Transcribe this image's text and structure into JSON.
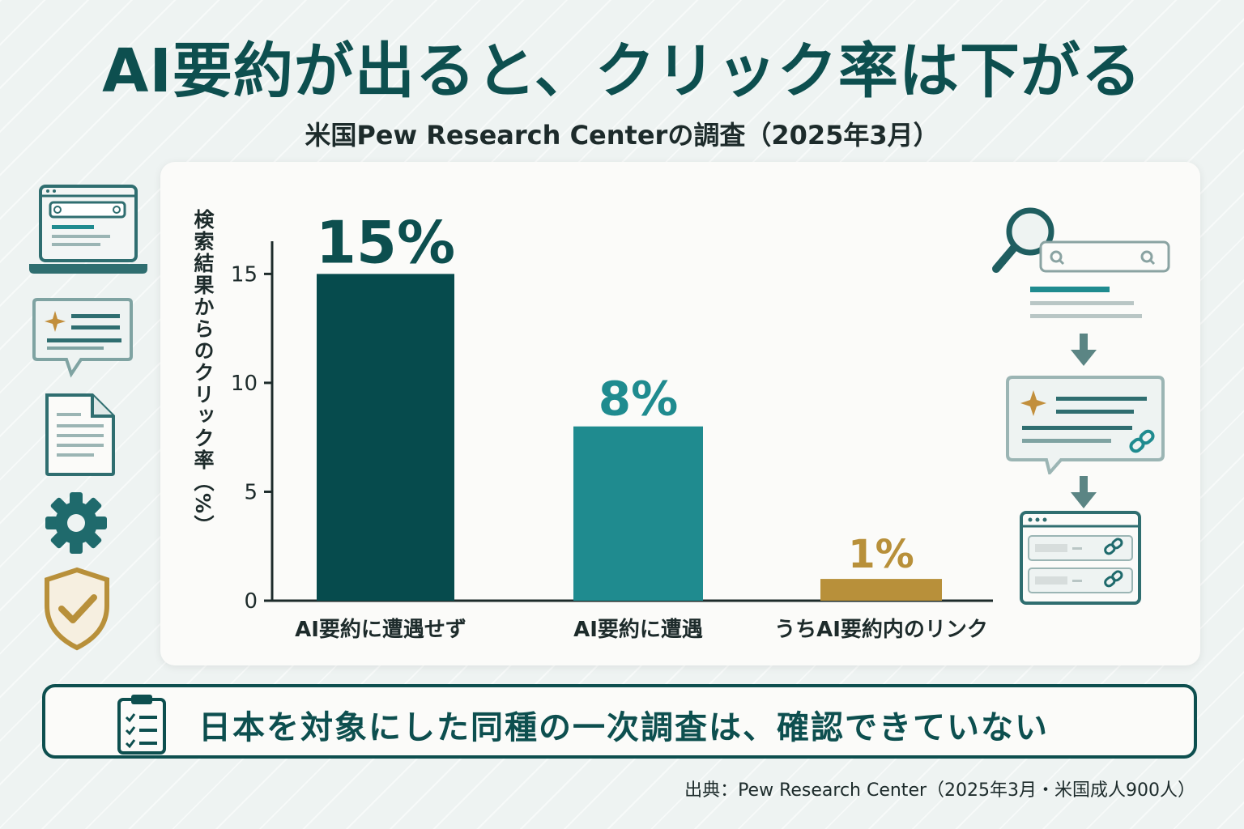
{
  "header": {
    "title": "AI要約が出ると、クリック率は下がる",
    "subtitle": "米国Pew Research Centerの調査（2025年3月）"
  },
  "chart_data": {
    "type": "bar",
    "categories": [
      "AI要約に遭遇せず",
      "AI要約に遭遇",
      "うちAI要約内のリンク"
    ],
    "values": [
      15,
      8,
      1
    ],
    "data_labels": [
      "15%",
      "8%",
      "1%"
    ],
    "ylabel": "検索結果からのクリック率（%）",
    "yticks": [
      0,
      5,
      10,
      15
    ],
    "ylim": [
      0,
      16.5
    ],
    "grid": false,
    "colors": [
      "#064b4d",
      "#1f8b8f",
      "#b8903a"
    ]
  },
  "footer": {
    "note": "日本を対象にした同種の一次調査は、確認できていない",
    "source": "出典：Pew Research Center（2025年3月・米国成人900人）"
  },
  "icons": {
    "left": [
      "laptop-search-icon",
      "ai-chat-bubble-icon",
      "document-icon",
      "gear-icon",
      "shield-check-icon"
    ],
    "right": [
      "magnifier-icon",
      "search-bar-icon",
      "results-list-icon",
      "arrow-down-icon",
      "ai-summary-bubble-icon",
      "link-icon",
      "browser-links-icon"
    ]
  }
}
